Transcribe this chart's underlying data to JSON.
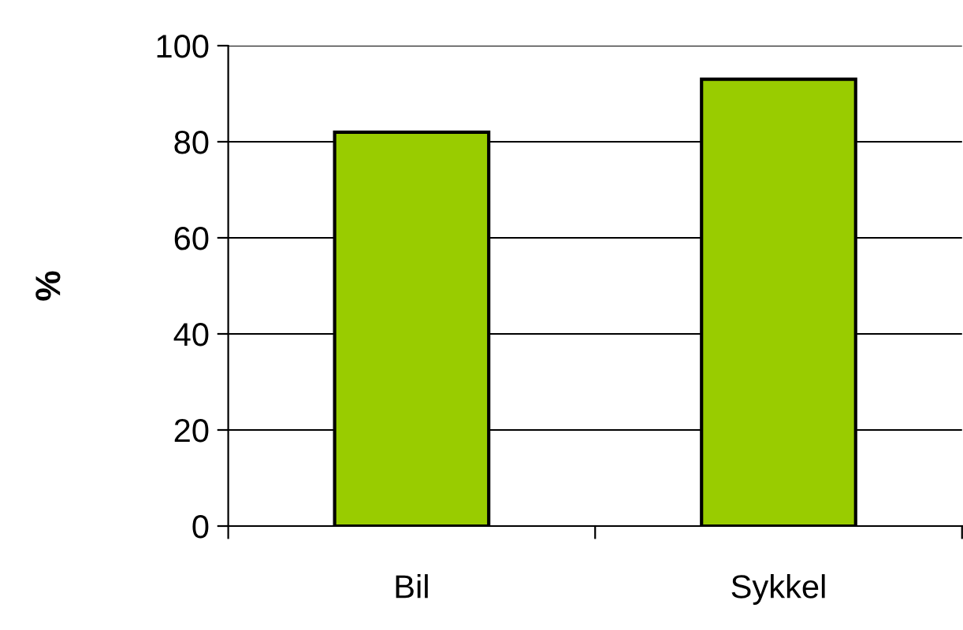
{
  "chart_data": {
    "type": "bar",
    "ylabel": "%",
    "categories": [
      "Bil",
      "Sykkel"
    ],
    "values": [
      82,
      93
    ],
    "color": "#99cc00",
    "ylim": [
      0,
      100
    ],
    "yticks": [
      0,
      20,
      40,
      60,
      80,
      100
    ],
    "grid": "y"
  }
}
